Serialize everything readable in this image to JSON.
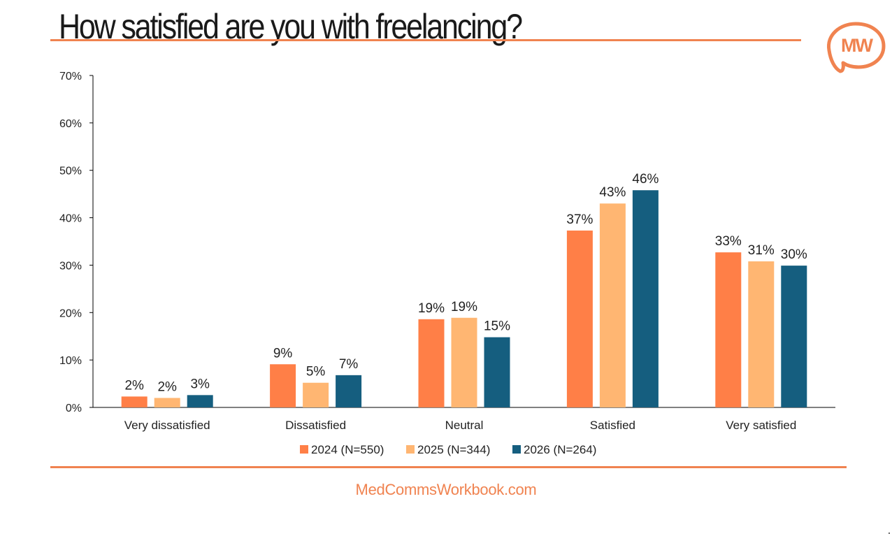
{
  "page": {
    "title": "How satisfied are you with freelancing?",
    "footer": "MedCommsWorkbook.com",
    "logo_text": "MW",
    "accent_color": "#f08350"
  },
  "chart_data": {
    "type": "bar",
    "title": "",
    "xlabel": "",
    "ylabel": "",
    "ylim": [
      0,
      70
    ],
    "y_ticks": [
      "0%",
      "10%",
      "20%",
      "30%",
      "40%",
      "50%",
      "60%",
      "70%"
    ],
    "categories": [
      "Very dissatisfied",
      "Dissatisfied",
      "Neutral",
      "Satisfied",
      "Very satisfied"
    ],
    "series": [
      {
        "name": "2024 (N=550)",
        "color": "#ff7f47",
        "values": [
          2.3,
          9.1,
          18.6,
          37.3,
          32.7
        ],
        "labels": [
          "2%",
          "9%",
          "19%",
          "37%",
          "33%"
        ]
      },
      {
        "name": "2025 (N=344)",
        "color": "#ffb672",
        "values": [
          2.0,
          5.2,
          18.9,
          43.0,
          30.8
        ],
        "labels": [
          "2%",
          "5%",
          "19%",
          "43%",
          "31%"
        ]
      },
      {
        "name": "2026 (N=264)",
        "color": "#155e7f",
        "values": [
          2.6,
          6.8,
          14.8,
          45.8,
          29.9
        ],
        "labels": [
          "3%",
          "7%",
          "15%",
          "46%",
          "30%"
        ]
      }
    ],
    "legend_position": "bottom",
    "grid": false
  }
}
